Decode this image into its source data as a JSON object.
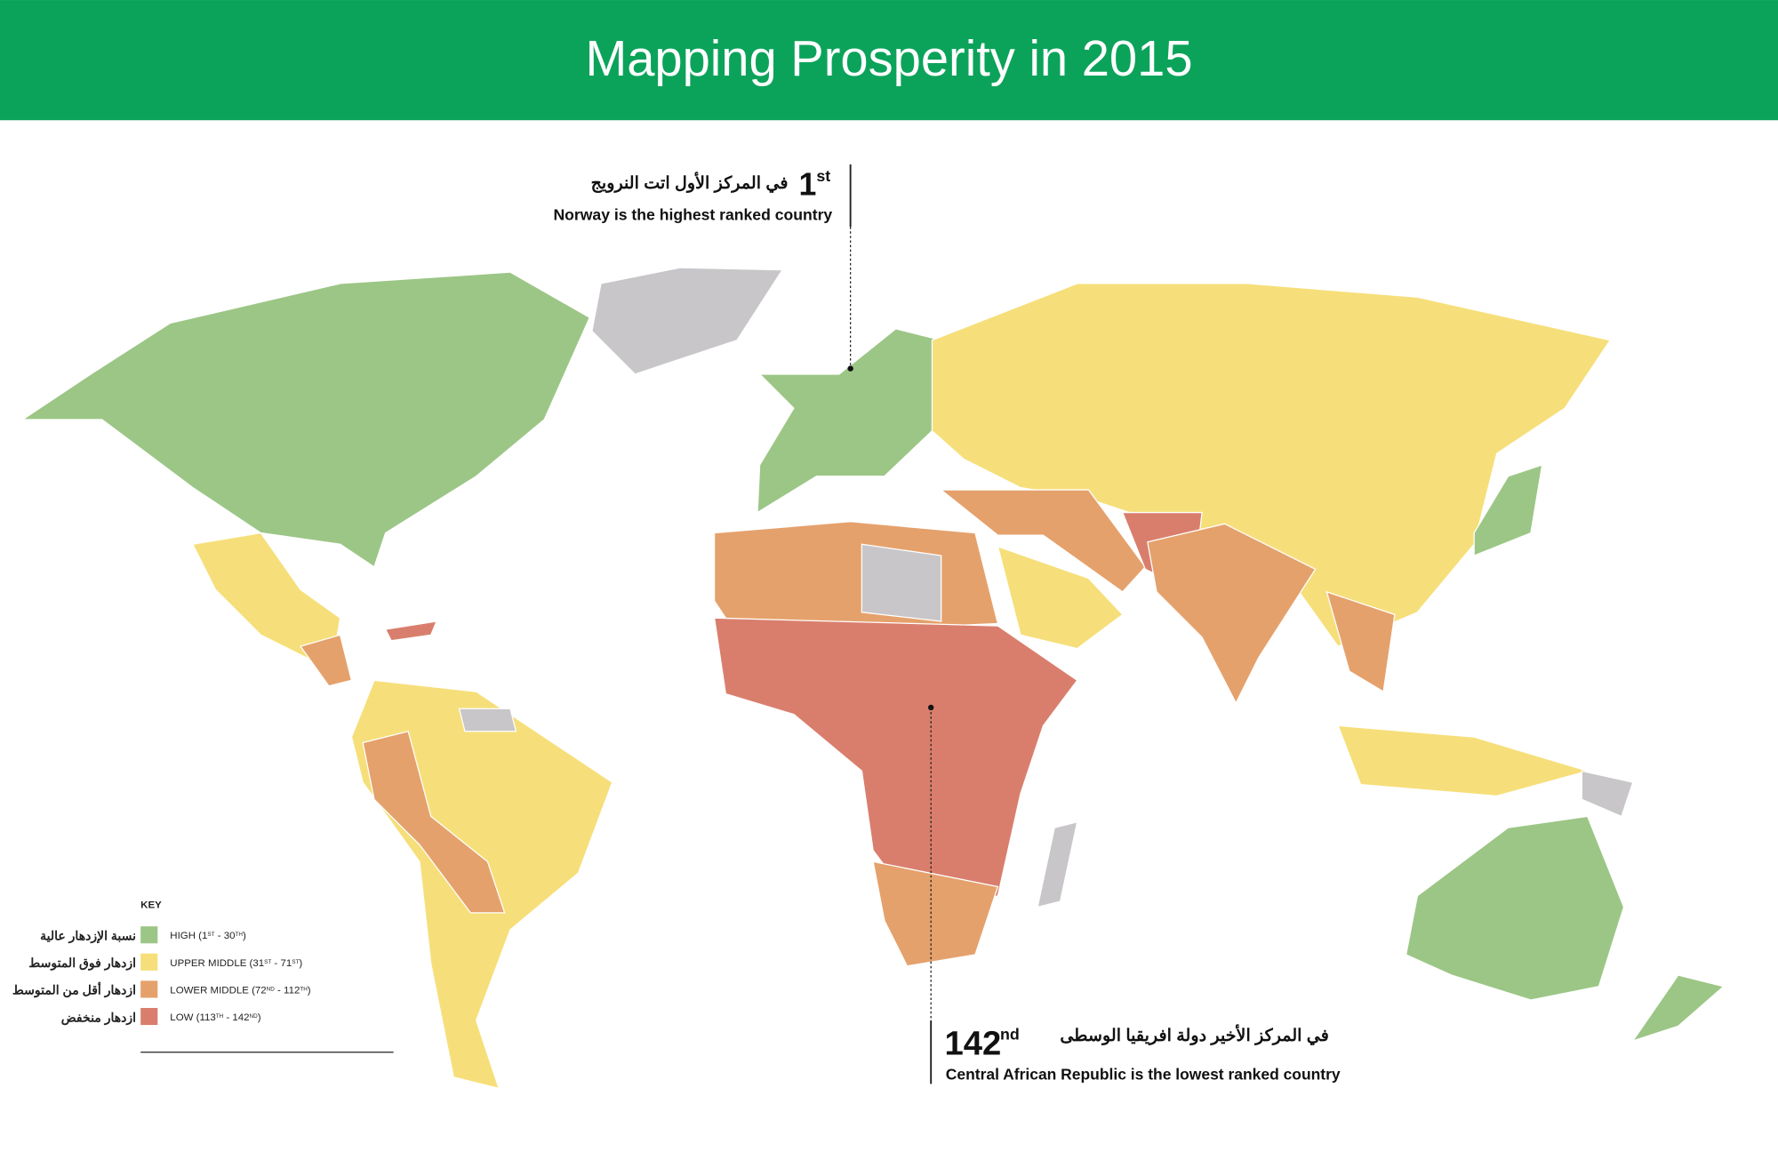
{
  "header": {
    "title": "Mapping Prosperity in 2015"
  },
  "callouts": [
    {
      "rank": "1",
      "suffix": "st",
      "arabic": "في المركز الأول اتت النرويج",
      "text": "Norway is the highest ranked country"
    },
    {
      "rank": "142",
      "suffix": "nd",
      "arabic": "في المركز الأخير دولة افريقيا الوسطى",
      "text": "Central African Republic is the lowest ranked country"
    }
  ],
  "legend": {
    "title": "KEY",
    "items": [
      {
        "arabic": "نسبة الإزدهار عالية",
        "label_parts": [
          "HIGH (1",
          "ST",
          " - 30",
          "TH",
          ")"
        ],
        "color": "#9cc686"
      },
      {
        "arabic": "ازدهار فوق المتوسط",
        "label_parts": [
          "UPPER MIDDLE (31",
          "ST",
          " - 71",
          "ST",
          ")"
        ],
        "color": "#f6df7a"
      },
      {
        "arabic": "ازدهار أقل من المتوسط",
        "label_parts": [
          "LOWER MIDDLE (72",
          "ND",
          " - 112",
          "TH",
          ")"
        ],
        "color": "#e5a16c"
      },
      {
        "arabic": "ازدهار منخفض",
        "label_parts": [
          "LOW (113",
          "TH",
          " - 142",
          "ND",
          ")"
        ],
        "color": "#d97e6d"
      }
    ]
  }
}
